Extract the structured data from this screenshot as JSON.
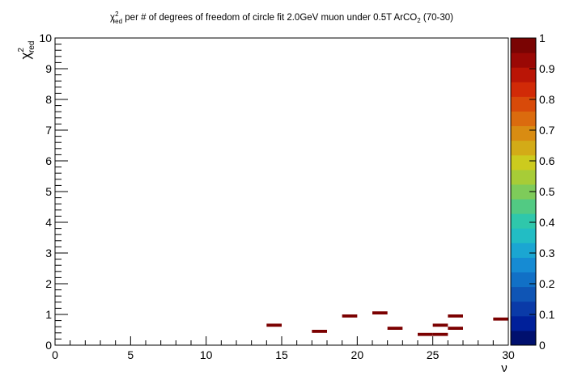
{
  "chart_data": {
    "type": "heatmap",
    "title": {
      "base": "χ",
      "sup": "2",
      "sub": "red",
      "mid": " per # of degrees of freedom of circle fit 2.0GeV muon under 0.5T ArCO",
      "mid_sub": "2",
      "tail": " (70-30)"
    },
    "xlabel": "ν",
    "ylabel": {
      "base": "χ",
      "sup": "2",
      "sub": "red"
    },
    "xlim": [
      0,
      30
    ],
    "ylim": [
      0,
      10
    ],
    "x_major_ticks": [
      0,
      5,
      10,
      15,
      20,
      25,
      30
    ],
    "x_tick_labels": [
      "0",
      "5",
      "10",
      "15",
      "20",
      "25",
      "30"
    ],
    "x_minor_step": 1,
    "y_major_ticks": [
      0,
      1,
      2,
      3,
      4,
      5,
      6,
      7,
      8,
      9,
      10
    ],
    "y_tick_labels": [
      "0",
      "1",
      "2",
      "3",
      "4",
      "5",
      "6",
      "7",
      "8",
      "9",
      "10"
    ],
    "y_minor_step": 0.2,
    "bin_width_x": 1,
    "bin_height_y": 0.1,
    "grid": false,
    "cells": [
      {
        "x": 14,
        "y": 0.6,
        "value": 1
      },
      {
        "x": 17,
        "y": 0.4,
        "value": 1
      },
      {
        "x": 19,
        "y": 0.9,
        "value": 1
      },
      {
        "x": 21,
        "y": 1.0,
        "value": 1
      },
      {
        "x": 22,
        "y": 0.5,
        "value": 1
      },
      {
        "x": 24,
        "y": 0.3,
        "value": 1
      },
      {
        "x": 25,
        "y": 0.3,
        "value": 1
      },
      {
        "x": 25,
        "y": 0.6,
        "value": 1
      },
      {
        "x": 26,
        "y": 0.5,
        "value": 1
      },
      {
        "x": 26,
        "y": 0.9,
        "value": 1
      },
      {
        "x": 29,
        "y": 0.8,
        "value": 1
      }
    ],
    "colorbar": {
      "range": [
        0,
        1
      ],
      "tick_values": [
        0,
        0.1,
        0.2,
        0.3,
        0.4,
        0.5,
        0.6,
        0.7,
        0.8,
        0.9,
        1
      ],
      "tick_labels": [
        "0",
        "0.1",
        "0.2",
        "0.3",
        "0.4",
        "0.5",
        "0.6",
        "0.7",
        "0.8",
        "0.9",
        "1"
      ],
      "colors": [
        "#00106e",
        "#00209a",
        "#0a3aa8",
        "#0f55b5",
        "#1170c6",
        "#168bd3",
        "#1ba6d2",
        "#22bdc4",
        "#2fc7ab",
        "#52ca83",
        "#7ecb5a",
        "#a7cc37",
        "#cccb1e",
        "#d3ab17",
        "#d98c12",
        "#db6b0e",
        "#d84a0a",
        "#d12a07",
        "#ba1506",
        "#9a0805",
        "#7a0403"
      ]
    },
    "cell_color": "#7b0000"
  }
}
